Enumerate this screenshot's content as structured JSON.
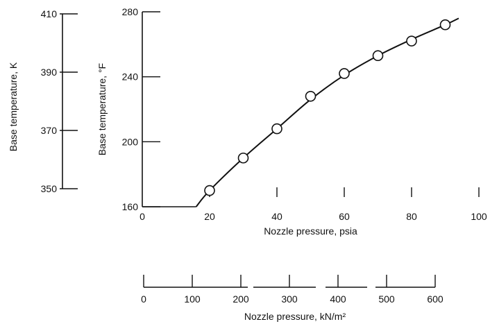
{
  "chart_data": {
    "type": "line",
    "series": [
      {
        "x": [
          20,
          30,
          40,
          50,
          60,
          70,
          80,
          90
        ],
        "y": [
          170,
          190,
          208,
          228,
          242,
          253,
          262,
          272
        ]
      }
    ],
    "curve": {
      "x": [
        16,
        20,
        30,
        40,
        50,
        60,
        70,
        80,
        90,
        94
      ],
      "y": [
        160,
        170,
        190,
        208,
        226,
        241,
        253,
        263,
        272,
        276
      ]
    },
    "x_axis": {
      "label": "Nozzle pressure,  psia",
      "range": [
        0,
        100
      ],
      "ticks": [
        0,
        20,
        40,
        60,
        80,
        100
      ]
    },
    "y_axis": {
      "label": "Base temperature,  °F",
      "range": [
        160,
        280
      ],
      "ticks": [
        160,
        200,
        240,
        280
      ]
    },
    "y_axis_secondary": {
      "label": "Base temperature,  K",
      "ticks": [
        350,
        370,
        390,
        410
      ]
    },
    "x_axis_secondary": {
      "label": "Nozzle pressure,  kN/m²",
      "ticks": [
        0,
        100,
        200,
        300,
        400,
        500,
        600
      ]
    },
    "grid": false,
    "legend": "none"
  }
}
